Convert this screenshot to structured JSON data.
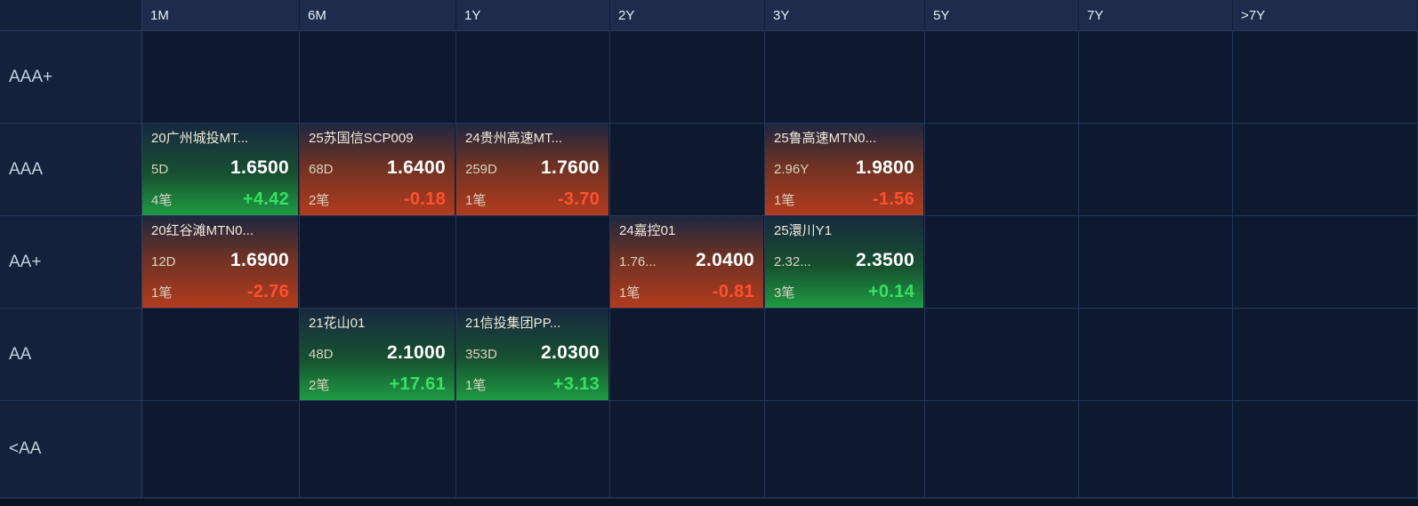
{
  "columns": [
    {
      "label": "1M"
    },
    {
      "label": "6M"
    },
    {
      "label": "1Y"
    },
    {
      "label": "2Y"
    },
    {
      "label": "3Y"
    },
    {
      "label": "5Y"
    },
    {
      "label": "7Y"
    },
    {
      "label": ">7Y"
    }
  ],
  "rows": [
    {
      "label": "AAA+"
    },
    {
      "label": "AAA"
    },
    {
      "label": "AA+"
    },
    {
      "label": "AA"
    },
    {
      "label": "<AA"
    }
  ],
  "cards": [
    {
      "row": "AAA",
      "col": "1M",
      "name": "20广州城投MT...",
      "duration": "5D",
      "yield": "1.6500",
      "count": "4笔",
      "change": "+4.42",
      "direction": "up"
    },
    {
      "row": "AAA",
      "col": "6M",
      "name": "25苏国信SCP009",
      "duration": "68D",
      "yield": "1.6400",
      "count": "2笔",
      "change": "-0.18",
      "direction": "down"
    },
    {
      "row": "AAA",
      "col": "1Y",
      "name": "24贵州高速MT...",
      "duration": "259D",
      "yield": "1.7600",
      "count": "1笔",
      "change": "-3.70",
      "direction": "down"
    },
    {
      "row": "AAA",
      "col": "3Y",
      "name": "25鲁高速MTN0...",
      "duration": "2.96Y",
      "yield": "1.9800",
      "count": "1笔",
      "change": "-1.56",
      "direction": "down"
    },
    {
      "row": "AA+",
      "col": "1M",
      "name": "20红谷滩MTN0...",
      "duration": "12D",
      "yield": "1.6900",
      "count": "1笔",
      "change": "-2.76",
      "direction": "down"
    },
    {
      "row": "AA+",
      "col": "2Y",
      "name": "24嘉控01",
      "duration": "1.76...",
      "yield": "2.0400",
      "count": "1笔",
      "change": "-0.81",
      "direction": "down"
    },
    {
      "row": "AA+",
      "col": "3Y",
      "name": "25澴川Y1",
      "duration": "2.32...",
      "yield": "2.3500",
      "count": "3笔",
      "change": "+0.14",
      "direction": "up"
    },
    {
      "row": "AA",
      "col": "6M",
      "name": "21花山01",
      "duration": "48D",
      "yield": "2.1000",
      "count": "2笔",
      "change": "+17.61",
      "direction": "up"
    },
    {
      "row": "AA",
      "col": "1Y",
      "name": "21信投集团PP...",
      "duration": "353D",
      "yield": "2.0300",
      "count": "1笔",
      "change": "+3.13",
      "direction": "up"
    }
  ],
  "colors": {
    "background": "#0e1930",
    "header_bg": "#1e2b4b",
    "label_column_bg": "#15213a",
    "grid_line": "#22345a",
    "up_text": "#35e263",
    "down_text": "#ff5030",
    "up_gradient_bottom": "#1e9b42",
    "down_gradient_bottom": "#b23b1d"
  }
}
